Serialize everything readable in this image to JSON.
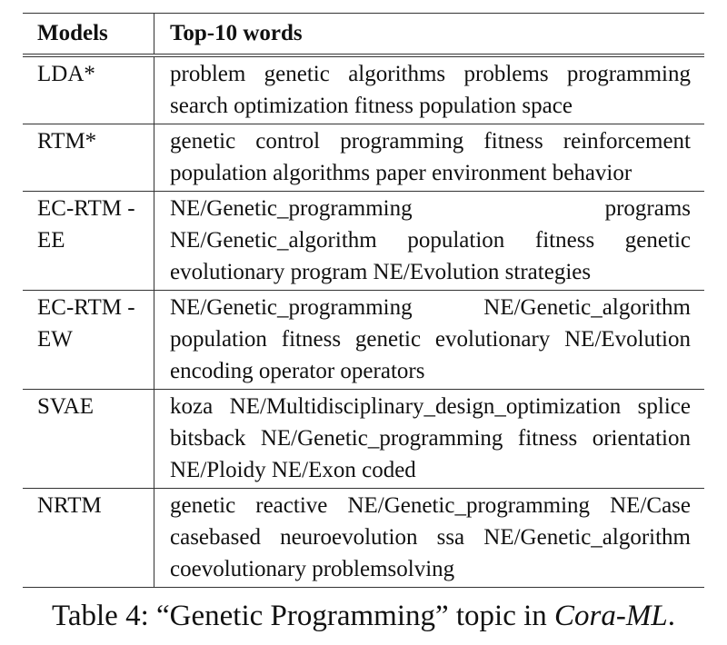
{
  "table": {
    "headers": [
      "Models",
      "Top-10 words"
    ],
    "rows": [
      {
        "model": "LDA*",
        "words": "problem genetic algorithms problems programming search optimization fitness population space"
      },
      {
        "model": "RTM*",
        "words": "genetic control programming fitness reinforcement population algorithms paper environment behavior"
      },
      {
        "model": "EC-RTM -EE",
        "words": "NE/Genetic_programming programs NE/Genetic_algorithm population fitness genetic evolutionary program NE/Evolution strategies"
      },
      {
        "model": "EC-RTM -EW",
        "words": "NE/Genetic_programming NE/Genetic_algorithm population fitness genetic evolutionary NE/Evolution encoding operator operators"
      },
      {
        "model": "SVAE",
        "words": "koza NE/Multidisciplinary_design_optimization splice bitsback NE/Genetic_programming fitness orientation NE/Ploidy NE/Exon coded"
      },
      {
        "model": "NRTM",
        "words": "genetic reactive NE/Genetic_programming NE/Case casebased neuroevolution ssa NE/Genetic_algorithm coevolutionary problemsolving"
      }
    ]
  },
  "caption": {
    "prefix": "Table 4: “Genetic Programming” topic in ",
    "emphasis": "Cora-ML",
    "suffix": "."
  }
}
